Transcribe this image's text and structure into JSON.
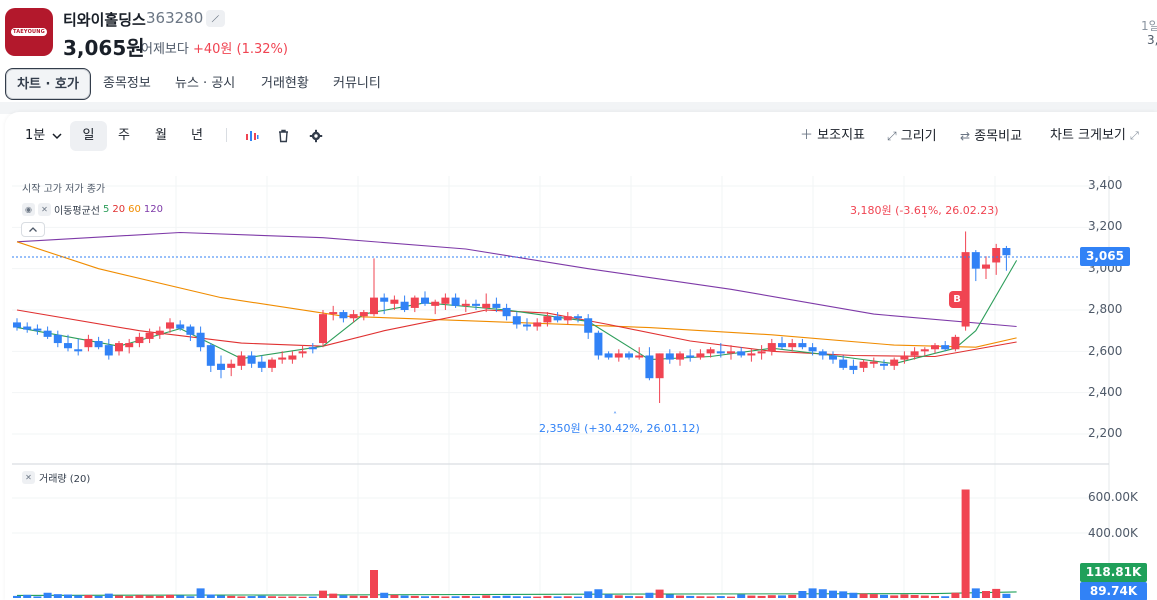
{
  "header": {
    "logo_text": "TAEYOUNG",
    "stock_name": "티와이홀딩스",
    "stock_code": "363280",
    "price": "3,065원",
    "vs_label": "어제보다",
    "change": "+40원 (1.32%)",
    "right_label": "1일",
    "right_value": "3,"
  },
  "tabs": [
    "차트 · 호가",
    "종목정보",
    "뉴스 · 공시",
    "거래현황",
    "커뮤니티"
  ],
  "toolbar": {
    "interval": "1분",
    "periods": [
      "일",
      "주",
      "월",
      "년"
    ],
    "indicators": "보조지표",
    "draw": "그리기",
    "compare": "종목비교",
    "expand": "차트 크게보기"
  },
  "chart_legend": {
    "ohlc": "시작 고가 저가 종가",
    "ma_title": "이동평균선",
    "ma_periods": [
      {
        "label": "5",
        "color": "#2e9e5b"
      },
      {
        "label": "20",
        "color": "#e03131"
      },
      {
        "label": "60",
        "color": "#f08c00"
      },
      {
        "label": "120",
        "color": "#7e3aa8"
      }
    ],
    "volume_title": "거래량 (20)"
  },
  "annotations": {
    "high": "3,180원 (-3.61%, 26.02.23)",
    "low": "2,350원 (+30.42%, 26.01.12)",
    "buy_badge": "B"
  },
  "price_axis": [
    "3,400",
    "3,200",
    "3,000",
    "2,800",
    "2,600",
    "2,400",
    "2,200"
  ],
  "current_price_tag": "3,065",
  "volume_axis": [
    "600.00K",
    "400.00K"
  ],
  "volume_tags": [
    {
      "label": "118.81K",
      "color": "#20a05a"
    },
    {
      "label": "89.74K",
      "color": "#3182f6"
    }
  ],
  "colors": {
    "up": "#f04452",
    "down": "#3182f6",
    "accent": "#3182f6"
  },
  "chart_data": {
    "type": "candlestick",
    "ylim": [
      2150,
      3450
    ],
    "volume_ylim": [
      0,
      700000
    ],
    "candles": [
      [
        2740,
        2760,
        2700,
        2715
      ],
      [
        2720,
        2740,
        2690,
        2705
      ],
      [
        2710,
        2730,
        2680,
        2700
      ],
      [
        2700,
        2720,
        2660,
        2670
      ],
      [
        2680,
        2700,
        2620,
        2640
      ],
      [
        2640,
        2680,
        2600,
        2615
      ],
      [
        2610,
        2660,
        2580,
        2600
      ],
      [
        2620,
        2680,
        2600,
        2660
      ],
      [
        2650,
        2670,
        2610,
        2620
      ],
      [
        2630,
        2660,
        2560,
        2580
      ],
      [
        2600,
        2650,
        2580,
        2640
      ],
      [
        2620,
        2660,
        2590,
        2640
      ],
      [
        2640,
        2690,
        2620,
        2670
      ],
      [
        2660,
        2710,
        2640,
        2690
      ],
      [
        2680,
        2720,
        2660,
        2700
      ],
      [
        2710,
        2760,
        2690,
        2740
      ],
      [
        2730,
        2750,
        2700,
        2710
      ],
      [
        2720,
        2730,
        2650,
        2680
      ],
      [
        2690,
        2720,
        2600,
        2620
      ],
      [
        2630,
        2640,
        2500,
        2530
      ],
      [
        2540,
        2580,
        2470,
        2510
      ],
      [
        2520,
        2560,
        2480,
        2540
      ],
      [
        2530,
        2600,
        2510,
        2580
      ],
      [
        2580,
        2600,
        2520,
        2540
      ],
      [
        2550,
        2580,
        2500,
        2520
      ],
      [
        2520,
        2570,
        2500,
        2560
      ],
      [
        2560,
        2600,
        2540,
        2570
      ],
      [
        2560,
        2600,
        2540,
        2580
      ],
      [
        2590,
        2630,
        2570,
        2600
      ],
      [
        2620,
        2640,
        2590,
        2610
      ],
      [
        2640,
        2800,
        2620,
        2780
      ],
      [
        2780,
        2820,
        2750,
        2790
      ],
      [
        2790,
        2800,
        2740,
        2760
      ],
      [
        2760,
        2800,
        2740,
        2780
      ],
      [
        2770,
        2800,
        2750,
        2790
      ],
      [
        2780,
        3050,
        2770,
        2860
      ],
      [
        2860,
        2880,
        2780,
        2840
      ],
      [
        2830,
        2870,
        2800,
        2850
      ],
      [
        2840,
        2870,
        2790,
        2800
      ],
      [
        2810,
        2870,
        2790,
        2860
      ],
      [
        2860,
        2890,
        2820,
        2830
      ],
      [
        2820,
        2850,
        2780,
        2840
      ],
      [
        2830,
        2880,
        2800,
        2860
      ],
      [
        2860,
        2880,
        2810,
        2820
      ],
      [
        2820,
        2850,
        2790,
        2830
      ],
      [
        2830,
        2850,
        2800,
        2820
      ],
      [
        2810,
        2880,
        2790,
        2830
      ],
      [
        2830,
        2860,
        2790,
        2810
      ],
      [
        2810,
        2830,
        2750,
        2770
      ],
      [
        2770,
        2790,
        2710,
        2730
      ],
      [
        2730,
        2760,
        2700,
        2720
      ],
      [
        2720,
        2760,
        2700,
        2740
      ],
      [
        2740,
        2790,
        2720,
        2770
      ],
      [
        2770,
        2790,
        2740,
        2750
      ],
      [
        2750,
        2790,
        2730,
        2770
      ],
      [
        2770,
        2780,
        2740,
        2760
      ],
      [
        2760,
        2780,
        2660,
        2690
      ],
      [
        2690,
        2700,
        2560,
        2580
      ],
      [
        2590,
        2600,
        2560,
        2570
      ],
      [
        2570,
        2610,
        2550,
        2590
      ],
      [
        2590,
        2600,
        2560,
        2570
      ],
      [
        2570,
        2620,
        2560,
        2580
      ],
      [
        2580,
        2620,
        2460,
        2470
      ],
      [
        2470,
        2590,
        2350,
        2590
      ],
      [
        2590,
        2610,
        2540,
        2560
      ],
      [
        2560,
        2600,
        2530,
        2590
      ],
      [
        2580,
        2610,
        2550,
        2570
      ],
      [
        2570,
        2610,
        2560,
        2590
      ],
      [
        2590,
        2620,
        2570,
        2610
      ],
      [
        2600,
        2640,
        2570,
        2590
      ],
      [
        2590,
        2630,
        2560,
        2600
      ],
      [
        2600,
        2620,
        2570,
        2580
      ],
      [
        2580,
        2610,
        2550,
        2590
      ],
      [
        2590,
        2630,
        2560,
        2600
      ],
      [
        2600,
        2660,
        2580,
        2640
      ],
      [
        2640,
        2670,
        2610,
        2620
      ],
      [
        2620,
        2660,
        2600,
        2640
      ],
      [
        2640,
        2660,
        2610,
        2620
      ],
      [
        2620,
        2640,
        2580,
        2600
      ],
      [
        2600,
        2610,
        2560,
        2580
      ],
      [
        2580,
        2600,
        2540,
        2560
      ],
      [
        2560,
        2580,
        2510,
        2520
      ],
      [
        2530,
        2560,
        2490,
        2510
      ],
      [
        2520,
        2560,
        2500,
        2550
      ],
      [
        2540,
        2570,
        2520,
        2550
      ],
      [
        2540,
        2560,
        2510,
        2530
      ],
      [
        2530,
        2570,
        2510,
        2560
      ],
      [
        2560,
        2600,
        2540,
        2580
      ],
      [
        2580,
        2620,
        2560,
        2600
      ],
      [
        2600,
        2620,
        2580,
        2610
      ],
      [
        2610,
        2640,
        2590,
        2630
      ],
      [
        2630,
        2650,
        2600,
        2610
      ],
      [
        2610,
        2680,
        2600,
        2670
      ],
      [
        2720,
        3180,
        2700,
        3080
      ],
      [
        3080,
        3090,
        2940,
        3000
      ],
      [
        3000,
        3060,
        2950,
        3020
      ],
      [
        3030,
        3120,
        2970,
        3100
      ],
      [
        3100,
        3110,
        2990,
        3065
      ]
    ],
    "volumes": [
      12000,
      18000,
      9000,
      30000,
      22000,
      20000,
      15000,
      17000,
      12000,
      25000,
      14000,
      11000,
      16000,
      13000,
      12000,
      18000,
      15000,
      10000,
      55000,
      20000,
      14000,
      12000,
      9000,
      11000,
      13000,
      10000,
      8000,
      9000,
      7000,
      8000,
      42000,
      25000,
      15000,
      13000,
      12000,
      160000,
      30000,
      18000,
      14000,
      12000,
      10000,
      11000,
      9000,
      10000,
      12000,
      9000,
      15000,
      11000,
      13000,
      10000,
      9000,
      8000,
      12000,
      9000,
      10000,
      8000,
      38000,
      50000,
      22000,
      15000,
      12000,
      10000,
      30000,
      48000,
      20000,
      14000,
      12000,
      10000,
      9000,
      11000,
      8000,
      20000,
      14000,
      12000,
      16000,
      15000,
      18000,
      40000,
      55000,
      50000,
      42000,
      38000,
      30000,
      25000,
      22000,
      18000,
      15000,
      20000,
      17000,
      14000,
      12000,
      10000,
      30000,
      620000,
      55000,
      40000,
      52000,
      24000
    ],
    "ma_series": {
      "ma5": [
        [
          0,
          2716
        ],
        [
          10,
          2625
        ],
        [
          16,
          2710
        ],
        [
          22,
          2565
        ],
        [
          30,
          2625
        ],
        [
          34,
          2780
        ],
        [
          40,
          2835
        ],
        [
          48,
          2800
        ],
        [
          56,
          2745
        ],
        [
          62,
          2560
        ],
        [
          68,
          2575
        ],
        [
          74,
          2615
        ],
        [
          80,
          2580
        ],
        [
          86,
          2540
        ],
        [
          92,
          2615
        ],
        [
          94,
          2700
        ],
        [
          98,
          3040
        ]
      ],
      "ma20": [
        [
          0,
          2800
        ],
        [
          12,
          2700
        ],
        [
          22,
          2640
        ],
        [
          30,
          2625
        ],
        [
          36,
          2700
        ],
        [
          46,
          2800
        ],
        [
          52,
          2785
        ],
        [
          58,
          2730
        ],
        [
          66,
          2650
        ],
        [
          74,
          2600
        ],
        [
          82,
          2580
        ],
        [
          90,
          2575
        ],
        [
          98,
          2645
        ]
      ],
      "ma60": [
        [
          0,
          3130
        ],
        [
          8,
          3000
        ],
        [
          20,
          2860
        ],
        [
          32,
          2770
        ],
        [
          46,
          2745
        ],
        [
          62,
          2715
        ],
        [
          74,
          2680
        ],
        [
          86,
          2630
        ],
        [
          94,
          2620
        ],
        [
          98,
          2665
        ]
      ],
      "ma120": [
        [
          0,
          3130
        ],
        [
          16,
          3175
        ],
        [
          30,
          3150
        ],
        [
          44,
          3095
        ],
        [
          56,
          3000
        ],
        [
          70,
          2900
        ],
        [
          84,
          2780
        ],
        [
          98,
          2720
        ]
      ],
      "vol_ma": [
        [
          0,
          15000
        ],
        [
          30,
          18000
        ],
        [
          60,
          22000
        ],
        [
          90,
          25000
        ],
        [
          98,
          35000
        ]
      ]
    }
  }
}
